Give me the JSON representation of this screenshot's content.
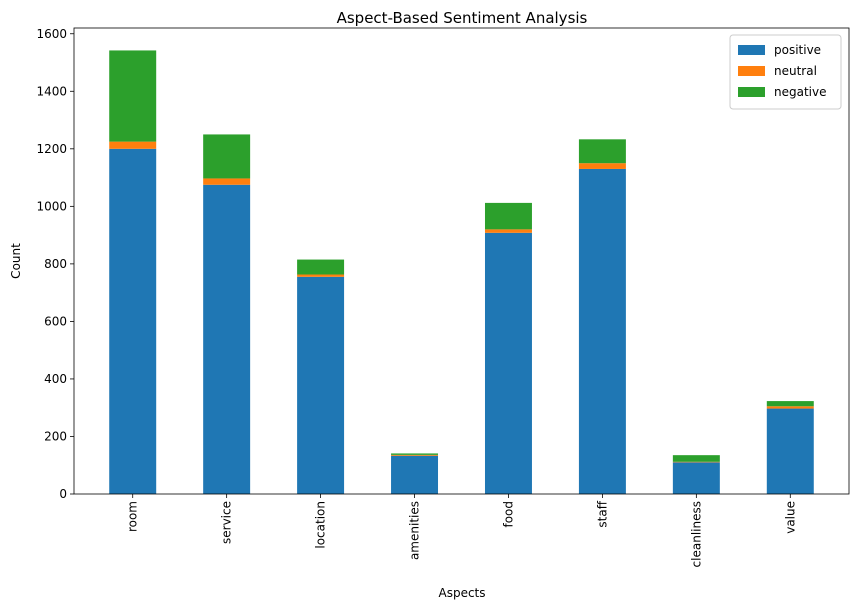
{
  "chart_data": {
    "type": "bar",
    "stacked": true,
    "title": "Aspect-Based Sentiment Analysis",
    "xlabel": "Aspects",
    "ylabel": "Count",
    "ylim": [
      0,
      1620
    ],
    "yticks": [
      0,
      200,
      400,
      600,
      800,
      1000,
      1200,
      1400,
      1600
    ],
    "categories": [
      "room",
      "service",
      "location",
      "amenities",
      "food",
      "staff",
      "cleanliness",
      "value"
    ],
    "series": [
      {
        "name": "positive",
        "color": "#1f77b4",
        "values": [
          1200,
          1075,
          755,
          133,
          908,
          1130,
          110,
          297
        ]
      },
      {
        "name": "neutral",
        "color": "#ff7f0e",
        "values": [
          25,
          22,
          8,
          3,
          12,
          20,
          2,
          8
        ]
      },
      {
        "name": "negative",
        "color": "#2ca02c",
        "values": [
          317,
          153,
          52,
          5,
          92,
          83,
          23,
          18
        ]
      }
    ],
    "legend": "top-right",
    "grid": false
  }
}
